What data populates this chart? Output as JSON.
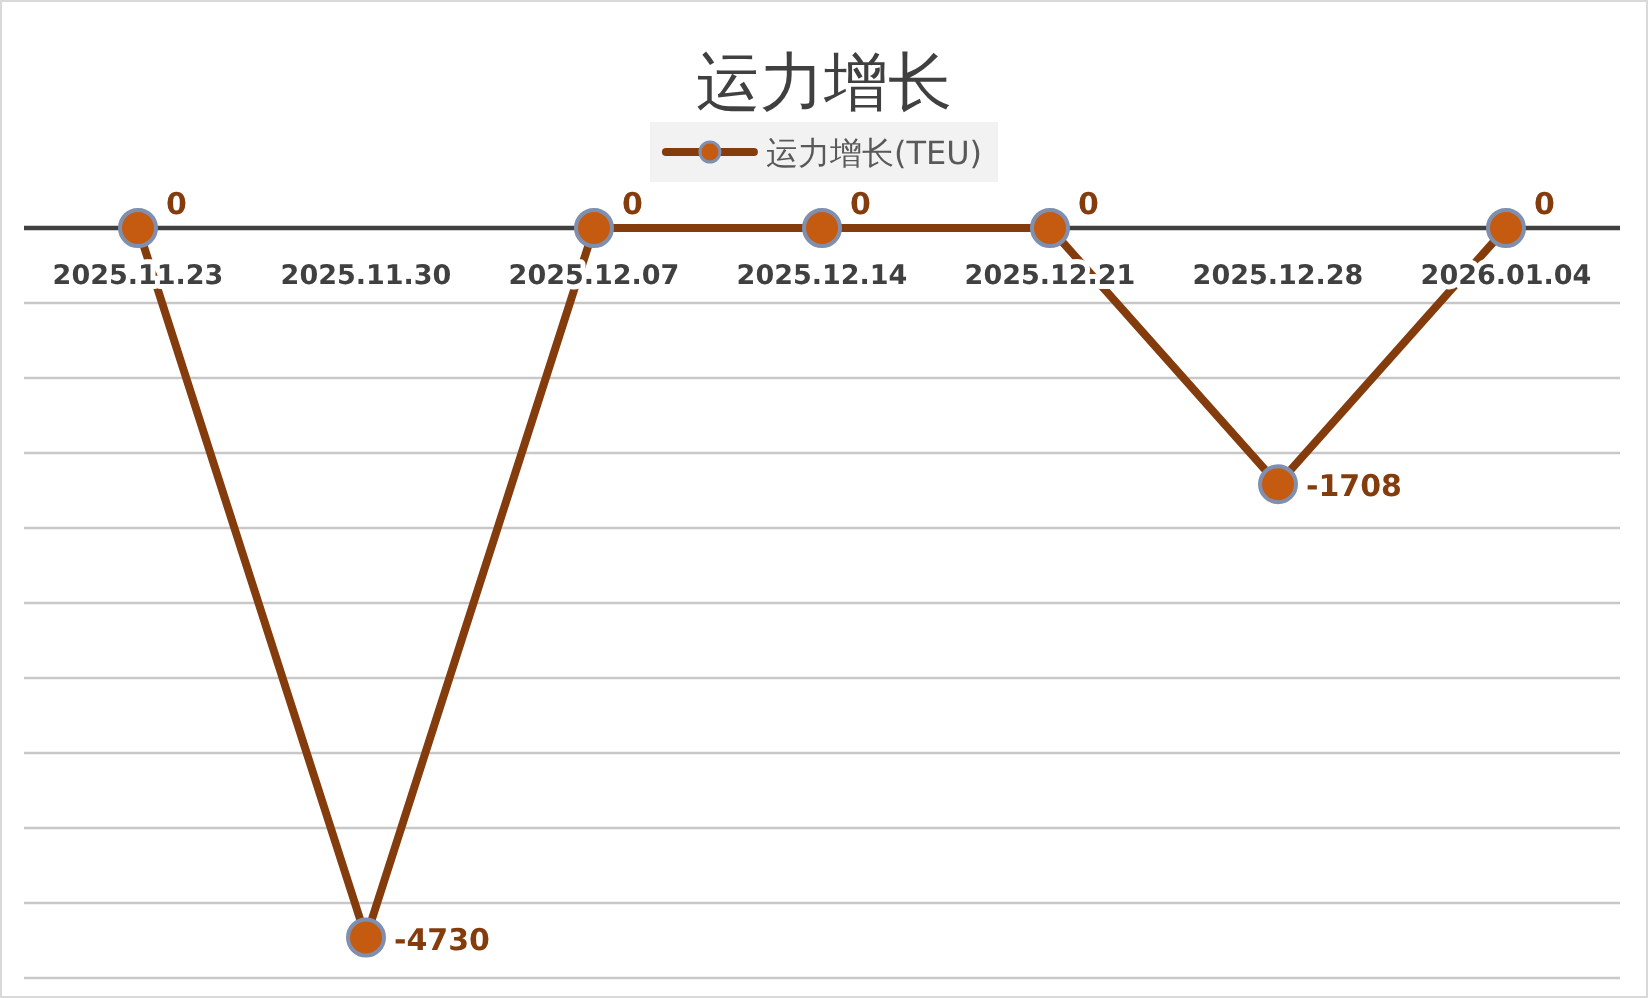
{
  "chart_data": {
    "type": "line",
    "title": "运力增长",
    "categories": [
      "2025.11.23",
      "2025.11.30",
      "2025.12.07",
      "2025.12.14",
      "2025.12.21",
      "2025.12.28",
      "2026.01.04"
    ],
    "series": [
      {
        "name": "运力增长(TEU)",
        "color": "#843c0c",
        "values": [
          0,
          -4730,
          0,
          0,
          0,
          -1708,
          0
        ]
      }
    ],
    "ylim": [
      -5000,
      0
    ],
    "yticks": [
      {
        "value": 0,
        "label": null
      },
      {
        "value": -500,
        "label": null
      },
      {
        "value": -1000,
        "label": null
      },
      {
        "value": -1500,
        "label": null
      },
      {
        "value": -2000,
        "label": null
      },
      {
        "value": -2500,
        "label": null
      },
      {
        "value": -3000,
        "label": null
      },
      {
        "value": -3500,
        "label": null
      },
      {
        "value": -4000,
        "label": null
      },
      {
        "value": -4500,
        "label": null
      },
      {
        "value": -5000,
        "label": null
      }
    ],
    "tick_labels": "x",
    "grid": "y",
    "legend": "top",
    "marker": "circle",
    "line_style": "solid",
    "data_labels": true
  }
}
